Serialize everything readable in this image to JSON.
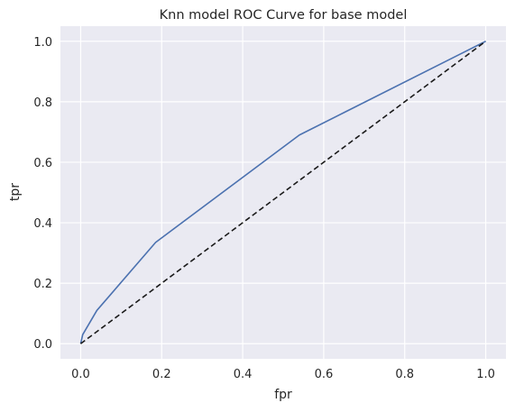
{
  "chart_data": {
    "type": "line",
    "title": "Knn model ROC Curve for base model",
    "xlabel": "fpr",
    "ylabel": "tpr",
    "xlim": [
      -0.05,
      1.05
    ],
    "ylim": [
      -0.05,
      1.05
    ],
    "x_ticks": [
      0.0,
      0.2,
      0.4,
      0.6,
      0.8,
      1.0
    ],
    "y_ticks": [
      0.0,
      0.2,
      0.4,
      0.6,
      0.8,
      1.0
    ],
    "x_tick_labels": [
      "0.0",
      "0.2",
      "0.4",
      "0.6",
      "0.8",
      "1.0"
    ],
    "y_tick_labels": [
      "0.0",
      "0.2",
      "0.4",
      "0.6",
      "0.8",
      "1.0"
    ],
    "grid": true,
    "legend": false,
    "series": [
      {
        "color": "#4c72b0",
        "style": "solid",
        "x": [
          0.0,
          0.005,
          0.04,
          0.185,
          0.54,
          1.0
        ],
        "y": [
          0.0,
          0.03,
          0.11,
          0.335,
          0.69,
          1.0
        ]
      },
      {
        "color": "#1a1a1a",
        "style": "dashed",
        "x": [
          0.0,
          1.0
        ],
        "y": [
          0.0,
          1.0
        ]
      }
    ],
    "background": "#eaeaf2",
    "grid_color": "#ffffff"
  }
}
